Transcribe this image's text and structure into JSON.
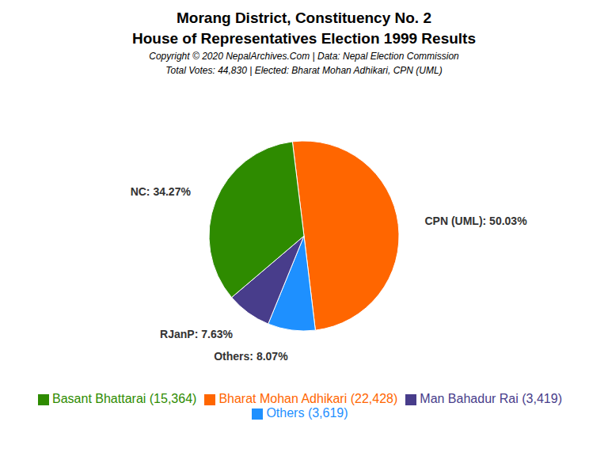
{
  "chart_data": {
    "type": "pie",
    "title": "Morang District, Constituency No. 2",
    "subtitle": "House of Representatives Election 1999 Results",
    "annotations": [
      "Copyright © 2020 NepalArchives.Com | Data: Nepal Election Commission",
      "Total Votes: 44,830 | Elected: Bharat Mohan Adhikari, CPN (UML)"
    ],
    "categories": [
      "Bharat Mohan Adhikari (22,428)",
      "Others (3,619)",
      "Man Bahadur Rai (3,419)",
      "Basant Bhattarai (15,364)"
    ],
    "values": [
      50.03,
      8.07,
      7.63,
      34.27
    ],
    "value_labels": [
      "CPN (UML): 50.03%",
      "Others: 8.07%",
      "RJanP: 7.63%",
      "NC: 34.27%"
    ],
    "colors": [
      "#FF6600",
      "#1E90FF",
      "#483D8B",
      "#2E8B00"
    ],
    "data_labels": true,
    "legend": "bottom"
  }
}
